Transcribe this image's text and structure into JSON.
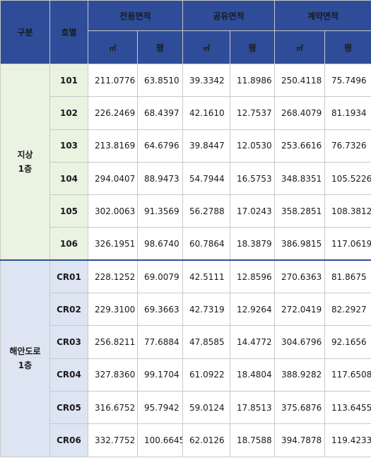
{
  "header": {
    "section_label": "구분",
    "unit_label": "호별",
    "groups": [
      "전용면적",
      "공유면적",
      "계약면적"
    ],
    "units": [
      "㎡",
      "평",
      "㎡",
      "평",
      "㎡",
      "평"
    ]
  },
  "sections": [
    {
      "label_line1": "지상",
      "label_line2": "1층",
      "rows": [
        {
          "no": "101",
          "v": [
            "211.0776",
            "63.8510",
            "39.3342",
            "11.8986",
            "250.4118",
            "75.7496"
          ]
        },
        {
          "no": "102",
          "v": [
            "226.2469",
            "68.4397",
            "42.1610",
            "12.7537",
            "268.4079",
            "81.1934"
          ]
        },
        {
          "no": "103",
          "v": [
            "213.8169",
            "64.6796",
            "39.8447",
            "12.0530",
            "253.6616",
            "76.7326"
          ]
        },
        {
          "no": "104",
          "v": [
            "294.0407",
            "88.9473",
            "54.7944",
            "16.5753",
            "348.8351",
            "105.5226"
          ]
        },
        {
          "no": "105",
          "v": [
            "302.0063",
            "91.3569",
            "56.2788",
            "17.0243",
            "358.2851",
            "108.3812"
          ]
        },
        {
          "no": "106",
          "v": [
            "326.1951",
            "98.6740",
            "60.7864",
            "18.3879",
            "386.9815",
            "117.0619"
          ]
        }
      ]
    },
    {
      "label_line1": "해안도로",
      "label_line2": "1층",
      "rows": [
        {
          "no": "CR01",
          "v": [
            "228.1252",
            "69.0079",
            "42.5111",
            "12.8596",
            "270.6363",
            "81.8675"
          ]
        },
        {
          "no": "CR02",
          "v": [
            "229.3100",
            "69.3663",
            "42.7319",
            "12.9264",
            "272.0419",
            "82.2927"
          ]
        },
        {
          "no": "CR03",
          "v": [
            "256.8211",
            "77.6884",
            "47.8585",
            "14.4772",
            "304.6796",
            "92.1656"
          ]
        },
        {
          "no": "CR04",
          "v": [
            "327.8360",
            "99.1704",
            "61.0922",
            "18.4804",
            "388.9282",
            "117.6508"
          ]
        },
        {
          "no": "CR05",
          "v": [
            "316.6752",
            "95.7942",
            "59.0124",
            "17.8513",
            "375.6876",
            "113.6455"
          ]
        },
        {
          "no": "CR06",
          "v": [
            "332.7752",
            "100.6645",
            "62.0126",
            "18.7588",
            "394.7878",
            "119.4233"
          ]
        }
      ]
    }
  ]
}
